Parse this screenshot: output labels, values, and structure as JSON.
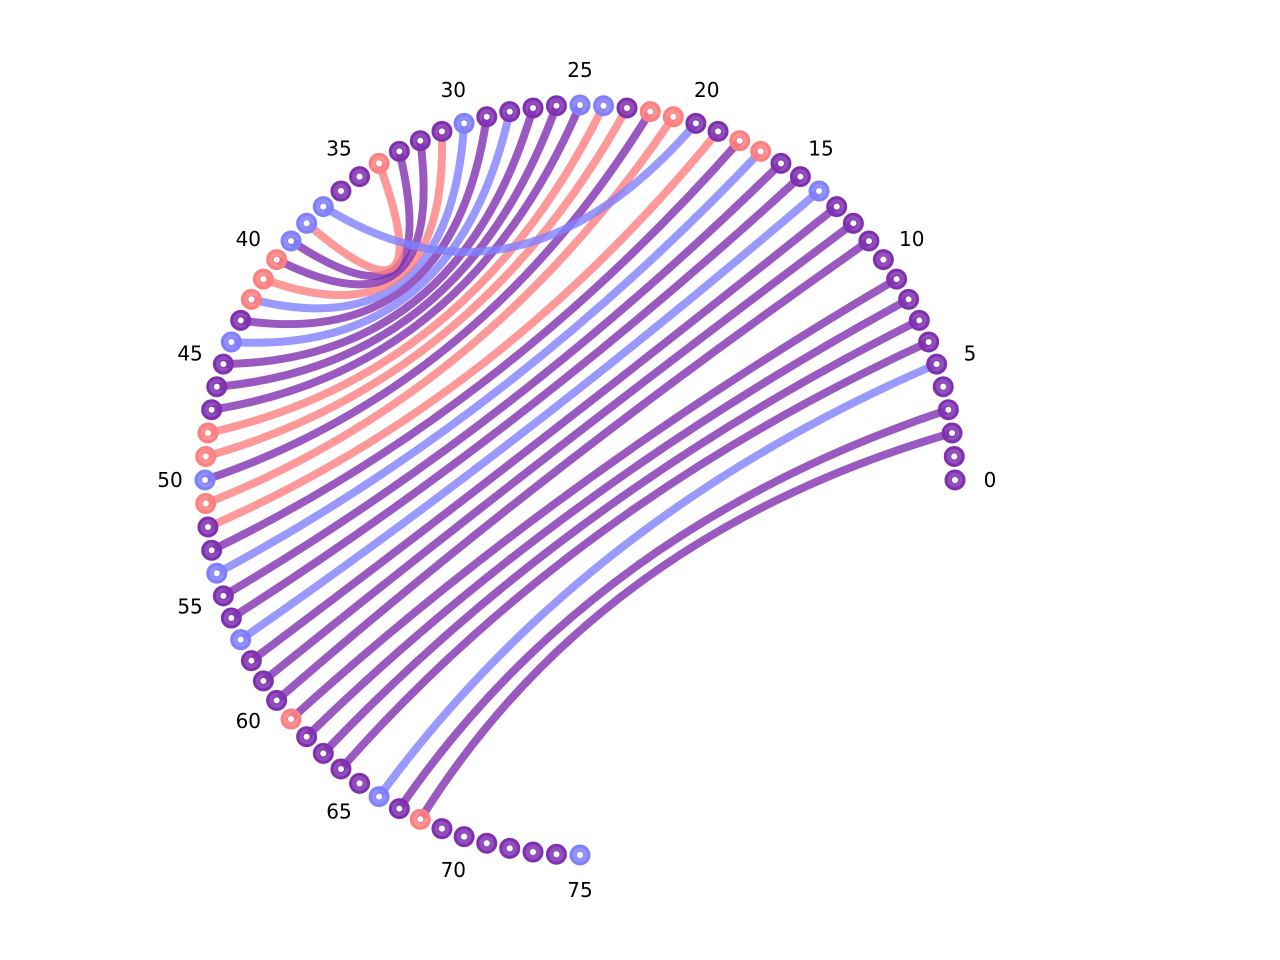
{
  "diagram": {
    "type": "arc-diagram",
    "node_count": 76,
    "tick_labels": [
      "0",
      "5",
      "10",
      "15",
      "20",
      "25",
      "30",
      "35",
      "40",
      "45",
      "50",
      "55",
      "60",
      "65",
      "70",
      "75"
    ],
    "colors": {
      "blue": "#7f7fff",
      "red": "#ff7f7f",
      "purple": "#7f30b0",
      "node_center": "#ffffff"
    },
    "links": [
      {
        "a": 2,
        "b": 68,
        "color": "purple"
      },
      {
        "a": 3,
        "b": 67,
        "color": "purple"
      },
      {
        "a": 5,
        "b": 66,
        "color": "blue"
      },
      {
        "a": 6,
        "b": 64,
        "color": "purple"
      },
      {
        "a": 7,
        "b": 63,
        "color": "purple"
      },
      {
        "a": 8,
        "b": 62,
        "color": "purple"
      },
      {
        "a": 9,
        "b": 61,
        "color": "purple"
      },
      {
        "a": 11,
        "b": 60,
        "color": "purple"
      },
      {
        "a": 12,
        "b": 59,
        "color": "purple"
      },
      {
        "a": 13,
        "b": 58,
        "color": "purple"
      },
      {
        "a": 14,
        "b": 57,
        "color": "blue"
      },
      {
        "a": 15,
        "b": 56,
        "color": "purple"
      },
      {
        "a": 16,
        "b": 55,
        "color": "purple"
      },
      {
        "a": 17,
        "b": 54,
        "color": "blue"
      },
      {
        "a": 18,
        "b": 53,
        "color": "purple"
      },
      {
        "a": 19,
        "b": 52,
        "color": "red"
      },
      {
        "a": 21,
        "b": 51,
        "color": "red"
      },
      {
        "a": 22,
        "b": 50,
        "color": "purple"
      },
      {
        "a": 23,
        "b": 49,
        "color": "red"
      },
      {
        "a": 24,
        "b": 48,
        "color": "red"
      },
      {
        "a": 25,
        "b": 47,
        "color": "purple"
      },
      {
        "a": 26,
        "b": 46,
        "color": "purple"
      },
      {
        "a": 27,
        "b": 45,
        "color": "purple"
      },
      {
        "a": 28,
        "b": 44,
        "color": "blue"
      },
      {
        "a": 29,
        "b": 43,
        "color": "purple"
      },
      {
        "a": 30,
        "b": 42,
        "color": "blue"
      },
      {
        "a": 31,
        "b": 41,
        "color": "red"
      },
      {
        "a": 32,
        "b": 40,
        "color": "purple"
      },
      {
        "a": 33,
        "b": 39,
        "color": "purple"
      },
      {
        "a": 34,
        "b": 38,
        "color": "red"
      },
      {
        "a": 20,
        "b": 37,
        "color": "blue"
      }
    ],
    "node_colors": {
      "37": "blue",
      "38": "blue",
      "39": "blue",
      "40": "red",
      "41": "red",
      "42": "red",
      "44": "blue",
      "48": "red",
      "49": "red",
      "50": "blue",
      "51": "red",
      "54": "blue",
      "57": "blue",
      "61": "red",
      "66": "blue",
      "68": "red",
      "75": "blue",
      "14": "blue",
      "17": "red",
      "18": "red",
      "21": "red",
      "22": "red",
      "24": "blue",
      "25": "blue",
      "30": "blue",
      "34": "red"
    }
  }
}
